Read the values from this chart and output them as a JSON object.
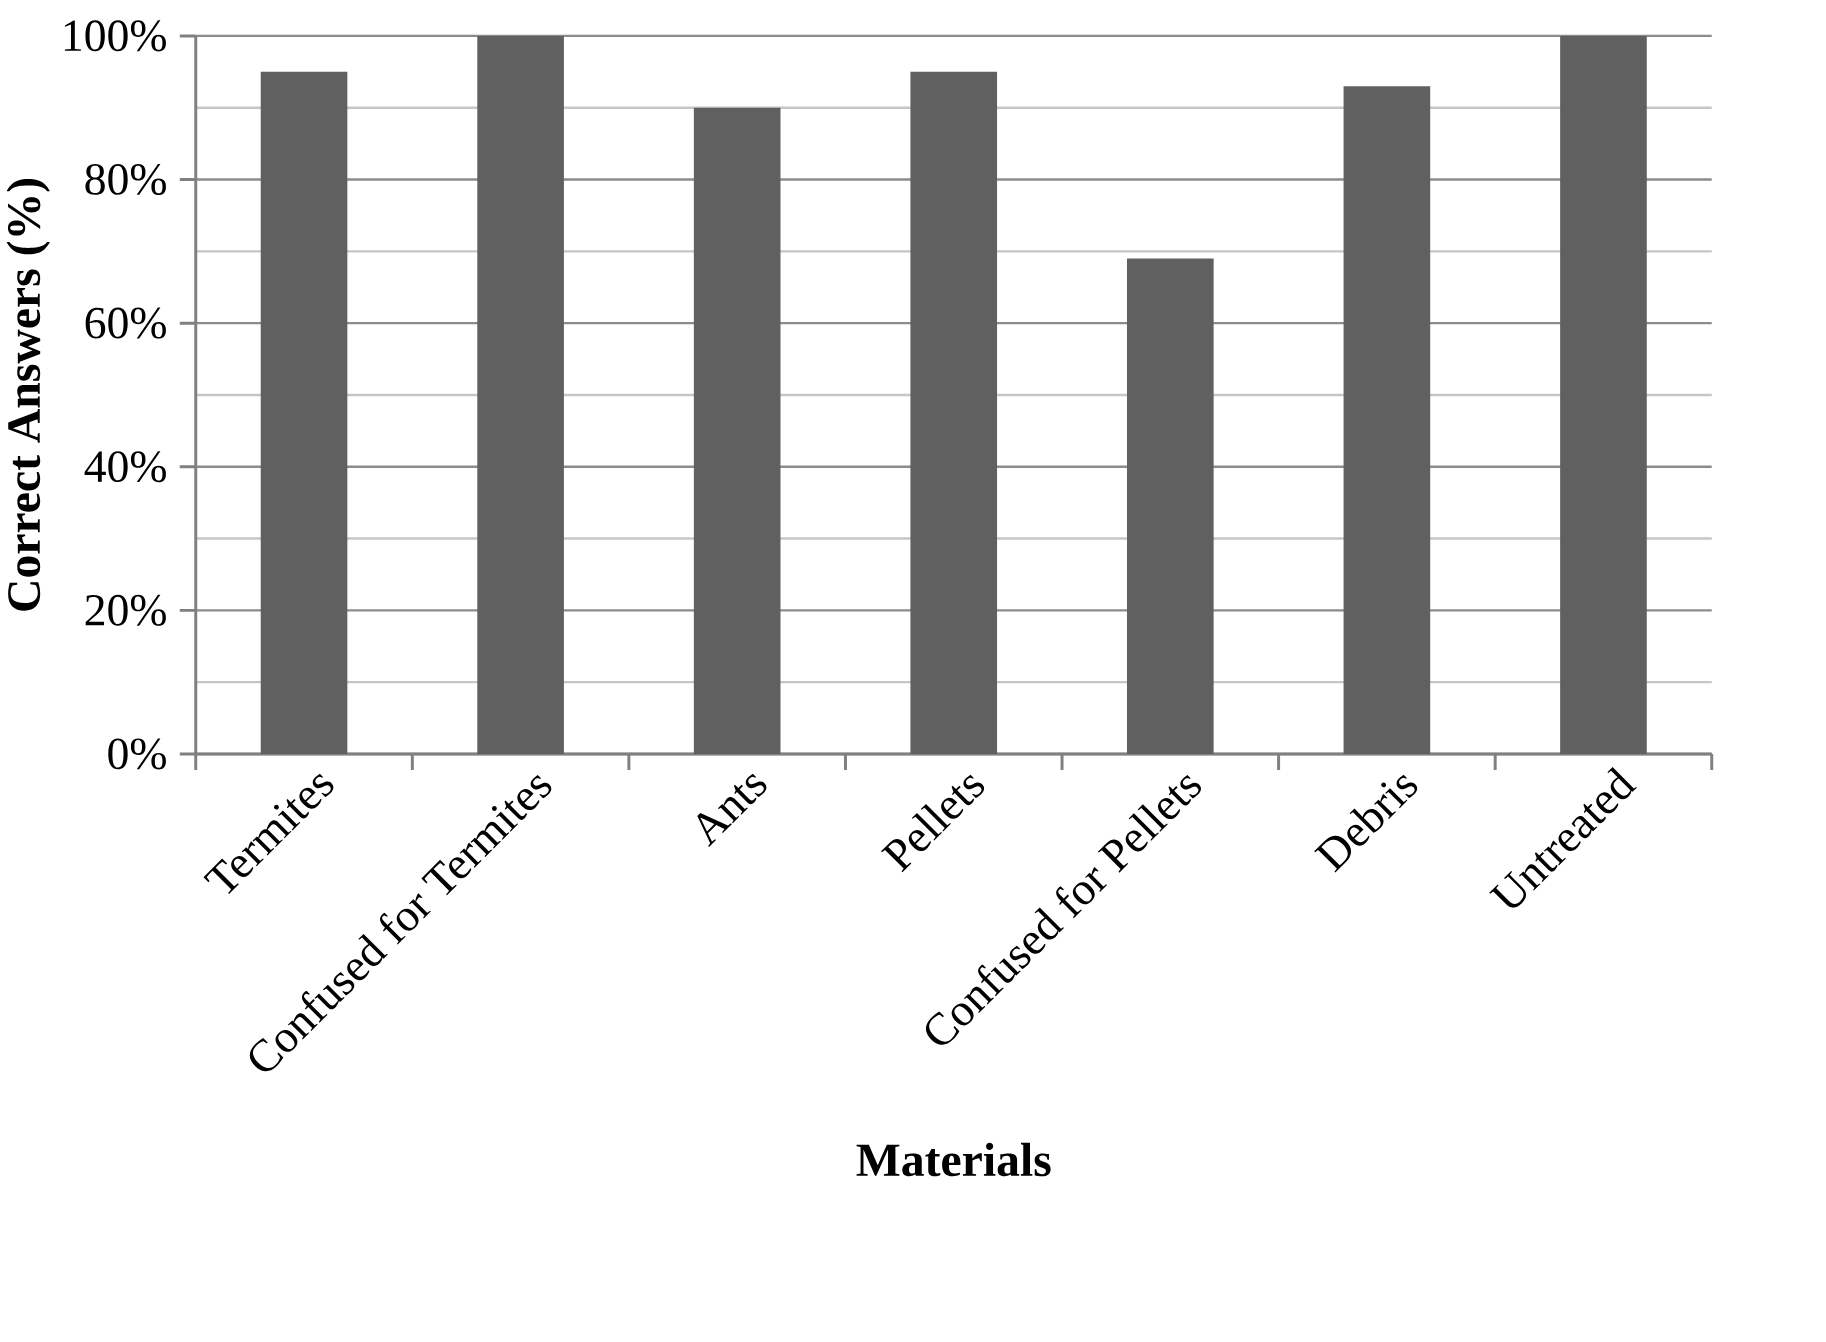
{
  "chart_data": {
    "type": "bar",
    "xlabel": "Materials",
    "ylabel": "Correct Answers (%)",
    "categories": [
      "Termites",
      "Confused for Termites",
      "Ants",
      "Pellets",
      "Confused for Pellets",
      "Debris",
      "Untreated"
    ],
    "values": [
      95,
      100,
      90,
      95,
      69,
      93,
      100
    ],
    "color": "#606060",
    "ylim": [
      0,
      100
    ],
    "yticks": [
      {
        "value": 0,
        "label": "0%"
      },
      {
        "value": 10,
        "label": null
      },
      {
        "value": 20,
        "label": "20%"
      },
      {
        "value": 30,
        "label": null
      },
      {
        "value": 40,
        "label": "40%"
      },
      {
        "value": 50,
        "label": null
      },
      {
        "value": 60,
        "label": "60%"
      },
      {
        "value": 70,
        "label": null
      },
      {
        "value": 80,
        "label": "80%"
      },
      {
        "value": 90,
        "label": null
      },
      {
        "value": 100,
        "label": "100%"
      }
    ],
    "grid": "y"
  }
}
